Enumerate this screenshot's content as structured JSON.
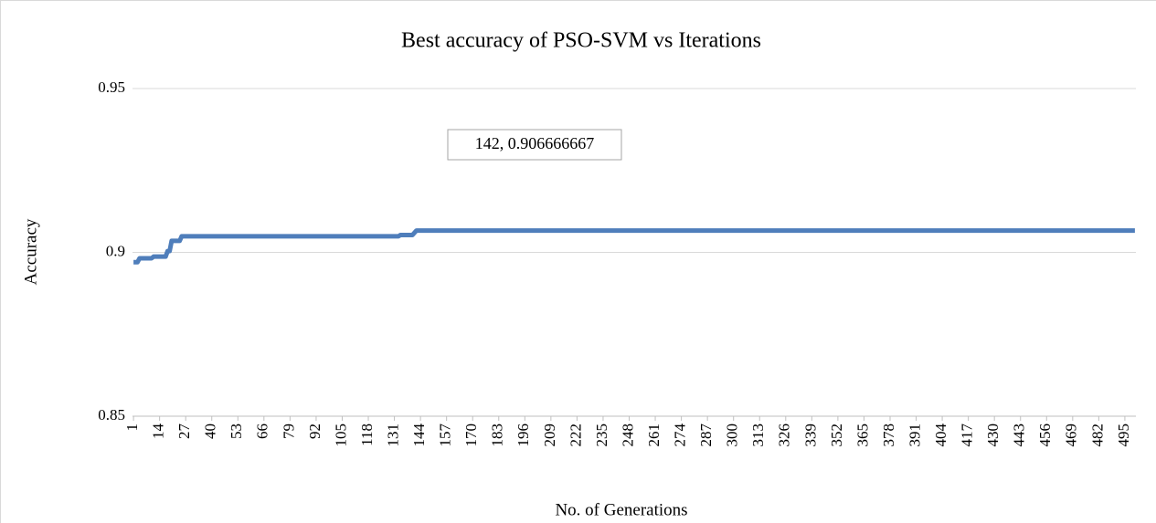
{
  "chart_data": {
    "type": "line",
    "title": "Best accuracy of PSO-SVM vs Iterations",
    "xlabel": "No. of Generations",
    "ylabel": "Accuracy",
    "annotation": "142, 0.906666667",
    "series": [
      {
        "name": "Best accuracy",
        "color": "#4f7ebb",
        "x": [
          1,
          3,
          4,
          10,
          11,
          17,
          18,
          19,
          20,
          24,
          25,
          133,
          134,
          140,
          142,
          500
        ],
        "values": [
          0.897,
          0.897,
          0.8982,
          0.8982,
          0.8987,
          0.8987,
          0.9004,
          0.9004,
          0.9035,
          0.9035,
          0.9049,
          0.9049,
          0.9053,
          0.9053,
          0.906666667,
          0.906666667
        ]
      }
    ],
    "xlim": [
      0.5,
      500.5
    ],
    "xticks": [
      1,
      14,
      27,
      40,
      53,
      66,
      79,
      92,
      105,
      118,
      131,
      144,
      157,
      170,
      183,
      196,
      209,
      222,
      235,
      248,
      261,
      274,
      287,
      300,
      313,
      326,
      339,
      352,
      365,
      378,
      391,
      404,
      417,
      430,
      443,
      456,
      469,
      482,
      495
    ],
    "ylim": [
      0.85,
      0.95
    ],
    "yticks": [
      0.85,
      0.9,
      0.95
    ],
    "grid": true
  }
}
